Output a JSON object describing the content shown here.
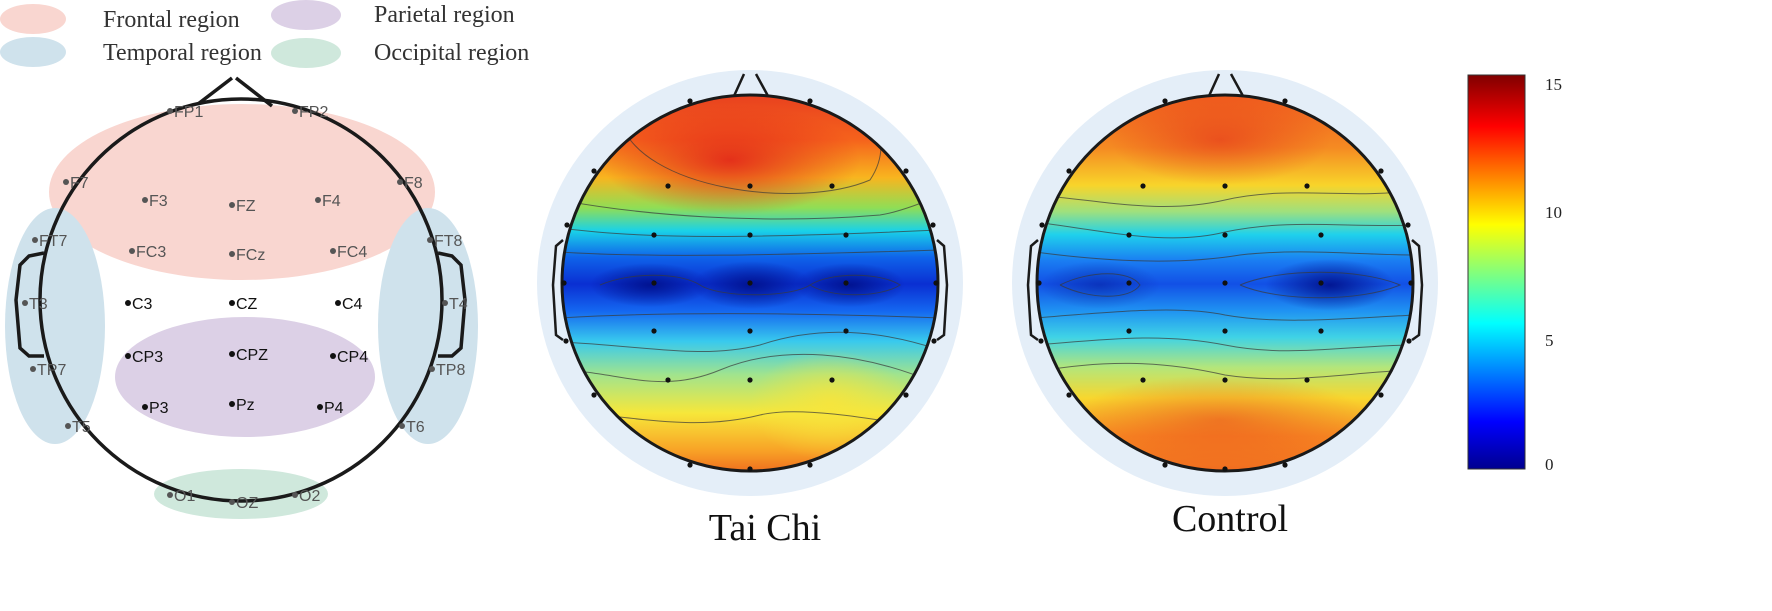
{
  "legend": {
    "frontal": {
      "label": "Frontal region",
      "color": "#f9d6d0"
    },
    "parietal": {
      "label": "Parietal region",
      "color": "#dcd0e6"
    },
    "temporal": {
      "label": "Temporal region",
      "color": "#cfe2ec"
    },
    "occipital": {
      "label": "Occipital region",
      "color": "#cfe8dc"
    }
  },
  "electrodes": [
    {
      "id": "FP1",
      "label": "FP1",
      "region": "frontal"
    },
    {
      "id": "FP2",
      "label": "FP2",
      "region": "frontal"
    },
    {
      "id": "F7",
      "label": "F7",
      "region": "frontal"
    },
    {
      "id": "F8",
      "label": "F8",
      "region": "frontal"
    },
    {
      "id": "F3",
      "label": "F3",
      "region": "frontal"
    },
    {
      "id": "FZ",
      "label": "FZ",
      "region": "frontal"
    },
    {
      "id": "F4",
      "label": "F4",
      "region": "frontal"
    },
    {
      "id": "FC3",
      "label": "FC3",
      "region": "frontal"
    },
    {
      "id": "FCz",
      "label": "FCz",
      "region": "frontal"
    },
    {
      "id": "FC4",
      "label": "FC4",
      "region": "frontal"
    },
    {
      "id": "FT7",
      "label": "FT7",
      "region": "temporal"
    },
    {
      "id": "FT8",
      "label": "FT8",
      "region": "temporal"
    },
    {
      "id": "T3",
      "label": "T3",
      "region": "temporal"
    },
    {
      "id": "T4",
      "label": "T4",
      "region": "temporal"
    },
    {
      "id": "TP7",
      "label": "TP7",
      "region": "temporal"
    },
    {
      "id": "TP8",
      "label": "TP8",
      "region": "temporal"
    },
    {
      "id": "T5",
      "label": "T5",
      "region": "temporal"
    },
    {
      "id": "T6",
      "label": "T6",
      "region": "temporal"
    },
    {
      "id": "C3",
      "label": "C3",
      "region": "central"
    },
    {
      "id": "CZ",
      "label": "CZ",
      "region": "central"
    },
    {
      "id": "C4",
      "label": "C4",
      "region": "central"
    },
    {
      "id": "CP3",
      "label": "CP3",
      "region": "parietal"
    },
    {
      "id": "CPZ",
      "label": "CPZ",
      "region": "parietal"
    },
    {
      "id": "CP4",
      "label": "CP4",
      "region": "parietal"
    },
    {
      "id": "P3",
      "label": "P3",
      "region": "parietal"
    },
    {
      "id": "Pz",
      "label": "Pz",
      "region": "parietal"
    },
    {
      "id": "P4",
      "label": "P4",
      "region": "parietal"
    },
    {
      "id": "O1",
      "label": "O1",
      "region": "occipital"
    },
    {
      "id": "OZ",
      "label": "OZ",
      "region": "occipital"
    },
    {
      "id": "O2",
      "label": "O2",
      "region": "occipital"
    }
  ],
  "topomaps": [
    {
      "title": "Tai Chi"
    },
    {
      "title": "Control"
    }
  ],
  "colorbar": {
    "ticks": [
      "15",
      "10",
      "5",
      "0"
    ],
    "range": [
      0,
      15
    ],
    "colormap": "jet"
  }
}
